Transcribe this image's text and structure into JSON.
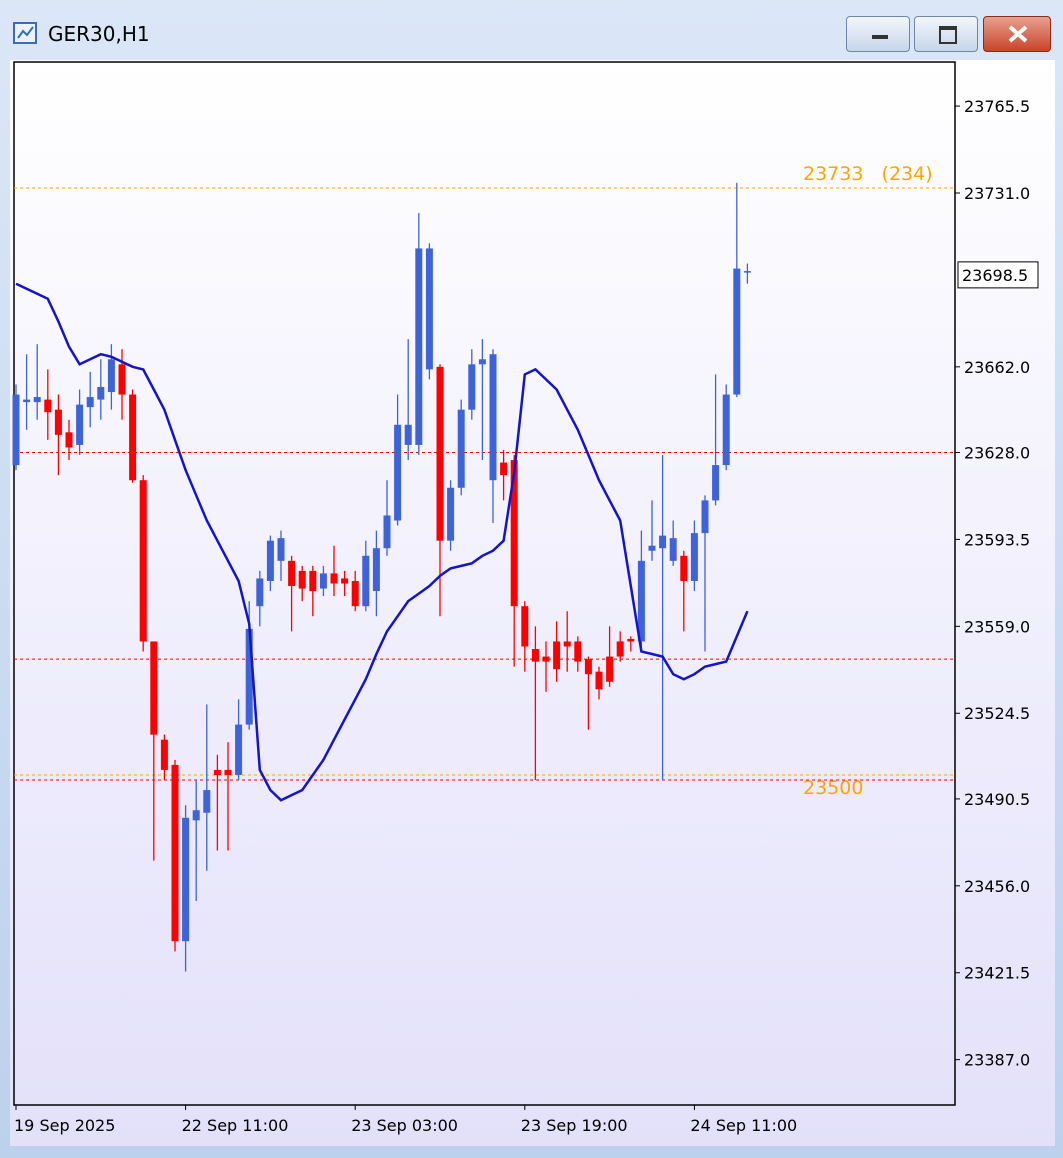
{
  "chart_data": {
    "type": "candlestick",
    "title": "GER30,H1",
    "categories": [
      "19 Sep 2025",
      null,
      null,
      null,
      null,
      null,
      null,
      null,
      null,
      null,
      null,
      null,
      null,
      null,
      null,
      null,
      "22 Sep 11:00",
      null,
      null,
      null,
      null,
      null,
      null,
      null,
      null,
      null,
      null,
      null,
      null,
      null,
      null,
      null,
      "23 Sep 03:00",
      null,
      null,
      null,
      null,
      null,
      null,
      null,
      null,
      null,
      null,
      null,
      null,
      null,
      null,
      null,
      "23 Sep 19:00",
      null,
      null,
      null,
      null,
      null,
      null,
      null,
      null,
      null,
      null,
      null,
      null,
      null,
      null,
      null,
      "24 Sep 11:00",
      null,
      null,
      null,
      null,
      null
    ],
    "open": [
      23623,
      23648,
      23648,
      23649,
      23645,
      23636,
      23631,
      23646,
      23649,
      23652,
      23663,
      23651,
      23617,
      23553,
      23514,
      23504,
      23434,
      23482,
      23485,
      23502,
      23502,
      23500,
      23520,
      23567,
      23577,
      23585,
      23585,
      23581,
      23581,
      23574,
      23580,
      23578,
      23577,
      23567,
      23573,
      23590,
      23601,
      23631,
      23631,
      23661,
      23662,
      23593,
      23614,
      23645,
      23663,
      23617,
      23624,
      23625,
      23567,
      23550,
      23547,
      23553,
      23553,
      23553,
      23546,
      23541,
      23547,
      23553,
      23554,
      23553,
      23589,
      23590,
      23585,
      23587,
      23577,
      23596,
      23609,
      23623,
      23651,
      23700
    ],
    "high": [
      23655,
      23667,
      23671,
      23661,
      23651,
      23641,
      23653,
      23660,
      23665,
      23671,
      23669,
      23653,
      23619,
      23553,
      23516,
      23506,
      23488,
      23498,
      23528,
      23508,
      23513,
      23530,
      23569,
      23581,
      23595,
      23597,
      23587,
      23583,
      23583,
      23583,
      23591,
      23581,
      23581,
      23593,
      23597,
      23617,
      23651,
      23673,
      23723,
      23711,
      23663,
      23617,
      23649,
      23669,
      23673,
      23669,
      23629,
      23627,
      23569,
      23559,
      23553,
      23561,
      23565,
      23555,
      23547,
      23543,
      23559,
      23557,
      23555,
      23597,
      23609,
      23627,
      23601,
      23589,
      23601,
      23611,
      23659,
      23655,
      23735,
      23703
    ],
    "low": [
      23621,
      23637,
      23641,
      23633,
      23619,
      23625,
      23627,
      23638,
      23641,
      23645,
      23641,
      23616,
      23549,
      23466,
      23498,
      23430,
      23422,
      23450,
      23462,
      23470,
      23470,
      23498,
      23518,
      23559,
      23573,
      23577,
      23557,
      23569,
      23563,
      23571,
      23571,
      23571,
      23565,
      23565,
      23563,
      23587,
      23599,
      23625,
      23627,
      23657,
      23563,
      23589,
      23611,
      23641,
      23625,
      23600,
      23609,
      23543,
      23541,
      23498,
      23533,
      23537,
      23541,
      23541,
      23518,
      23530,
      23535,
      23545,
      23549,
      23551,
      23585,
      23498,
      23583,
      23557,
      23573,
      23549,
      23607,
      23621,
      23650,
      23695
    ],
    "close": [
      23651,
      23649,
      23650,
      23644,
      23635,
      23630,
      23647,
      23650,
      23654,
      23665,
      23651,
      23617,
      23553,
      23516,
      23502,
      23434,
      23483,
      23486,
      23494,
      23500,
      23500,
      23520,
      23558,
      23578,
      23593,
      23594,
      23575,
      23574,
      23573,
      23580,
      23576,
      23576,
      23567,
      23587,
      23590,
      23603,
      23639,
      23639,
      23709,
      23709,
      23593,
      23614,
      23645,
      23663,
      23665,
      23667,
      23619,
      23567,
      23551,
      23545,
      23545,
      23542,
      23551,
      23545,
      23540,
      23534,
      23537,
      23547,
      23553,
      23585,
      23591,
      23595,
      23594,
      23577,
      23596,
      23609,
      23623,
      23651,
      23701,
      23700
    ],
    "up_color": "#3e63d8",
    "down_color": "#ff0000",
    "ma": {
      "color": "#1414c8",
      "values": [
        23695,
        23693,
        23691,
        23689,
        23680,
        23670,
        23663,
        23665,
        23667,
        23666,
        23664,
        23662,
        23661,
        23653,
        23645,
        23633,
        23621,
        23611,
        23601,
        23593,
        23585,
        23577,
        23560,
        23502,
        23494,
        23490,
        23492,
        23494,
        23500,
        23506,
        23514,
        23522,
        23530,
        23538,
        23548,
        23557,
        23563,
        23569,
        23572,
        23575,
        23579,
        23582,
        23583,
        23584,
        23587,
        23589,
        23593,
        23620,
        23659,
        23661,
        23657,
        23653,
        23645,
        23637,
        23627,
        23617,
        23609,
        23601,
        23575,
        23549,
        23548,
        23547,
        23540,
        23538,
        23540,
        23543,
        23544,
        23545,
        23555,
        23565
      ]
    },
    "ylim": [
      23369,
      23783
    ],
    "yticks": [
      23765.5,
      {
        "value": 23731,
        "label": "23731.0"
      },
      {
        "value": 23662,
        "label": "23662.0"
      },
      {
        "value": 23628,
        "label": "23628.0"
      },
      23593.5,
      {
        "value": 23559,
        "label": "23559.0"
      },
      23524.5,
      23490.5,
      {
        "value": 23456,
        "label": "23456.0"
      },
      23421.5,
      {
        "value": 23387,
        "label": "23387.0"
      }
    ],
    "last_price": 23698.5,
    "levels": [
      {
        "value": 23733,
        "color": "#ffa500"
      },
      {
        "value": 23628,
        "color": "#ff0000"
      },
      {
        "value": 23546,
        "color": "#ff0000"
      },
      {
        "value": 23500,
        "color": "#ffa500"
      },
      {
        "value": 23498,
        "color": "#ff0000"
      }
    ],
    "annotations": [
      {
        "text": "23733   (234)",
        "value": 23733,
        "color": "#ffa500"
      },
      {
        "text": "23500",
        "value": 23500,
        "color": "#ffa500"
      }
    ]
  }
}
